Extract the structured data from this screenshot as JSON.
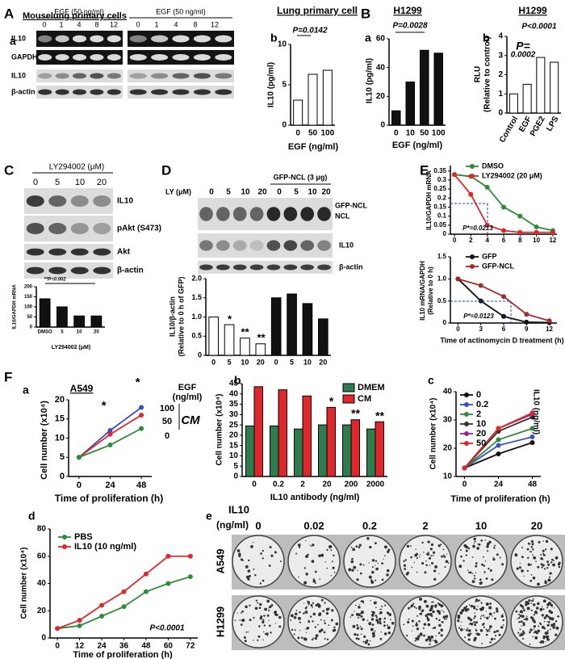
{
  "figure": {
    "panel_letters": [
      "A",
      "a",
      "b",
      "B",
      "a",
      "b",
      "C",
      "D",
      "E",
      "F",
      "a",
      "b",
      "c",
      "d",
      "e"
    ],
    "A": {
      "title": "Mouselung primary cells",
      "treatments": [
        "EGF (50 ng/ml)",
        "EGF (50 ng/ml)"
      ],
      "lanes_left": [
        "0",
        "1",
        "4",
        "8",
        "12"
      ],
      "lanes_right": [
        "0",
        "1",
        "4",
        "8",
        "12"
      ],
      "rows": [
        "IL10",
        "GAPDH",
        "IL10",
        "β-actin"
      ]
    },
    "C": {
      "treatment": "LY294002 (μM)",
      "lanes": [
        "0",
        "5",
        "10",
        "20"
      ],
      "rows": [
        "IL10",
        "pAkt (S473)",
        "Akt",
        "β-actin"
      ]
    },
    "D": {
      "treatment": "LY (μM)",
      "group": "GFP-NCL (3 μg)",
      "lanes": [
        "0",
        "5",
        "10",
        "20",
        "0",
        "5",
        "10",
        "20"
      ],
      "rows": [
        "GFP-NCL",
        "NCL",
        "IL10",
        "β-actin"
      ]
    },
    "e": {
      "title": [
        "IL10",
        "(ng/ml)"
      ],
      "columns": [
        "0",
        "0.02",
        "0.2",
        "2",
        "10",
        "20"
      ],
      "rows": [
        "A549",
        "H1299"
      ]
    }
  },
  "chart_data": [
    {
      "type": "bar",
      "title": "Lung primary cell",
      "categories": [
        "0",
        "50",
        "100"
      ],
      "values": [
        3.1,
        6.3,
        6.8
      ],
      "color": "#ffffff",
      "ylim": [
        0,
        10
      ],
      "yticks": [
        0,
        5,
        10
      ],
      "ylabel": "IL10 (pg/ml)",
      "xlabel": "EGF (ng/ml)",
      "annotations": [
        "P=0.0142"
      ]
    },
    {
      "type": "bar",
      "title": "H1299",
      "categories": [
        "0",
        "10",
        "50",
        "100"
      ],
      "values": [
        10,
        30,
        52,
        50
      ],
      "color": "#111111",
      "ylim": [
        0,
        60
      ],
      "yticks": [
        0,
        20,
        40,
        60
      ],
      "ylabel": "IL10 (pg/ml)",
      "xlabel": "EGF (ng/ml)",
      "annotations": [
        "P=0.0028"
      ]
    },
    {
      "type": "bar",
      "title": "H1299",
      "categories": [
        "Control",
        "EGF",
        "PGE2",
        "LPS"
      ],
      "values": [
        1.0,
        1.5,
        2.9,
        2.65
      ],
      "color": "#ffffff",
      "ylim": [
        0,
        4
      ],
      "yticks": [
        0,
        1,
        2,
        3,
        4
      ],
      "ylabel": [
        "RLU",
        "(Relative to control)"
      ],
      "annotations": [
        "P<0.0001",
        "P=",
        "0.0002"
      ]
    },
    {
      "type": "bar",
      "categories": [
        "DMSO",
        "5",
        "10",
        "20"
      ],
      "values": [
        140,
        100,
        55,
        55
      ],
      "color": "#111111",
      "ylim": [
        0,
        200
      ],
      "yticks": [
        0,
        50,
        100,
        150,
        200
      ],
      "ylabel": "IL10/GAPDH mRNA",
      "xlabel": "LY294002 (μM)",
      "annotations": [
        "**P=0.002"
      ]
    },
    {
      "type": "bar",
      "categories": [
        "0",
        "5",
        "10",
        "20",
        "0",
        "5",
        "10",
        "20"
      ],
      "values": [
        1.0,
        0.8,
        0.45,
        0.3,
        1.5,
        1.6,
        1.35,
        0.95
      ],
      "colors": [
        "#ffffff",
        "#ffffff",
        "#ffffff",
        "#ffffff",
        "#111111",
        "#111111",
        "#111111",
        "#111111"
      ],
      "ylim": [
        0,
        2
      ],
      "yticks": [
        0,
        0.5,
        {
          "value": 1,
          "label": "1.0"
        },
        1.5,
        {
          "value": 2,
          "label": "2.0"
        }
      ],
      "ylabel": [
        "IL10/β-actin",
        "(Relative to 0 h of GFP)"
      ],
      "annotations": [
        "*",
        "**",
        "**"
      ]
    },
    {
      "type": "line",
      "x": [
        0,
        2,
        4,
        6,
        8,
        10,
        12
      ],
      "xlim": [
        -0.5,
        12.5
      ],
      "xticks": [
        0,
        2,
        4,
        6,
        8,
        10,
        12
      ],
      "ylim": [
        0,
        0.38
      ],
      "yticks": [
        0,
        0.05,
        0.1,
        0.15,
        0.2,
        0.25,
        0.3,
        0.35
      ],
      "ylabel": "IL10/GAPDH mRNA",
      "legend": "upper right",
      "series": [
        {
          "name": "DMSO",
          "color": "#2e8b3a",
          "values": [
            0.33,
            0.32,
            0.26,
            0.15,
            0.1,
            0.04,
            0.02
          ]
        },
        {
          "name": "LY294002 (20 μM)",
          "color": "#e0262b",
          "values": [
            0.33,
            0.22,
            0.05,
            0.02,
            0.01,
            0.01,
            0.01
          ]
        }
      ],
      "annotations": [
        "P*=0.0213"
      ]
    },
    {
      "type": "line",
      "x": [
        0,
        3,
        6,
        9,
        12
      ],
      "xlim": [
        -1,
        13
      ],
      "xticks": [
        0,
        3,
        6,
        9,
        12
      ],
      "ylim": [
        0,
        1.5
      ],
      "yticks": [
        0,
        0.5,
        {
          "value": 1,
          "label": "1.0"
        },
        1.5
      ],
      "ylabel": [
        "IL10 mRNA/GAPDH",
        "(Relative to 0 h)"
      ],
      "xlabel": "Time of actinomycin D treatment (h)",
      "legend": "upper right",
      "series": [
        {
          "name": "GFP",
          "color": "#111111",
          "values": [
            1.0,
            0.5,
            0.15,
            0.02,
            0.01
          ]
        },
        {
          "name": "GFP-NCL",
          "color": "#a52a2a",
          "values": [
            1.0,
            0.85,
            0.6,
            0.2,
            0.05
          ]
        }
      ],
      "annotations": [
        "P*=0.0123"
      ]
    },
    {
      "type": "line",
      "title": "A549",
      "x": [
        0,
        24,
        48
      ],
      "xlim": [
        -8,
        56
      ],
      "xticks": [
        0,
        24,
        48
      ],
      "ylim": [
        0,
        20
      ],
      "yticks": [
        0,
        5,
        10,
        15,
        20
      ],
      "ylabel": "Cell number (x10⁴)",
      "xlabel": "Time of proliferation (h)",
      "legend": "right",
      "legend_title": [
        "EGF",
        "(ng/ml)"
      ],
      "series": [
        {
          "name": "100",
          "color": "#3b4fc4",
          "values": [
            5,
            12,
            18
          ]
        },
        {
          "name": "50",
          "color": "#e0262b",
          "values": [
            5,
            11,
            16
          ]
        },
        {
          "name": "0",
          "color": "#2e8b3a",
          "values": [
            5,
            8.2,
            12.5
          ]
        }
      ],
      "annotations": [
        "*",
        "*",
        "CM"
      ]
    },
    {
      "type": "bar",
      "categories": [
        "0",
        "0.2",
        "2",
        "20",
        "200",
        "2000"
      ],
      "ylim": [
        0,
        45
      ],
      "yticks": [
        0,
        5,
        10,
        15,
        20,
        25,
        30,
        35,
        40,
        45
      ],
      "ylabel": "Cell number (x10⁴)",
      "xlabel": "IL10 antibody (ng/ml)",
      "legend": "upper right",
      "series": [
        {
          "name": "DMEM",
          "color": "#2e7d4f",
          "values": [
            24.5,
            24.5,
            23,
            25,
            25,
            23
          ]
        },
        {
          "name": "CM",
          "color": "#e0262b",
          "values": [
            43.5,
            42,
            39,
            33.5,
            27.5,
            26.5
          ]
        }
      ],
      "annotations": [
        "*",
        "**",
        "**"
      ]
    },
    {
      "type": "line",
      "x": [
        0,
        24,
        48
      ],
      "xlim": [
        -6,
        54
      ],
      "xticks": [
        0,
        24,
        48
      ],
      "ylim": [
        10,
        40
      ],
      "yticks": [
        10,
        20,
        30,
        40
      ],
      "ylabel": "Cell number (x10⁴)",
      "xlabel": "Time of proliferation (h)",
      "legend": "upper left",
      "legend_title": "IL10 (ng/ml)",
      "series": [
        {
          "name": "0",
          "color": "#111111",
          "values": [
            13,
            18,
            22
          ]
        },
        {
          "name": "0.2",
          "color": "#3b4fc4",
          "values": [
            13,
            21,
            24
          ]
        },
        {
          "name": "2",
          "color": "#2e8b3a",
          "values": [
            13,
            23,
            27
          ]
        },
        {
          "name": "10",
          "color": "#333333",
          "values": [
            13,
            26,
            31
          ]
        },
        {
          "name": "20",
          "color": "#8b2a8b",
          "values": [
            13,
            27,
            32
          ]
        },
        {
          "name": "50",
          "color": "#e0262b",
          "values": [
            13,
            27,
            32.5
          ]
        }
      ]
    },
    {
      "type": "line",
      "x": [
        0,
        12,
        24,
        36,
        48,
        60,
        72
      ],
      "xlim": [
        -4,
        76
      ],
      "xticks": [
        0,
        12,
        24,
        36,
        48,
        60,
        72
      ],
      "ylim": [
        0,
        80
      ],
      "yticks": [
        0,
        20,
        40,
        60,
        80
      ],
      "ylabel": "Cell number (x10⁴)",
      "xlabel": "Time of proliferation (h)",
      "legend": "upper left",
      "series": [
        {
          "name": "PBS",
          "color": "#2e8b3a",
          "values": [
            7,
            9,
            16,
            23,
            34,
            40,
            45
          ]
        },
        {
          "name": "IL10 (10 ng/ml)",
          "color": "#e0262b",
          "values": [
            7,
            13,
            24,
            34,
            47,
            60,
            60
          ]
        }
      ],
      "annotations": [
        "P<0.0001"
      ]
    }
  ]
}
